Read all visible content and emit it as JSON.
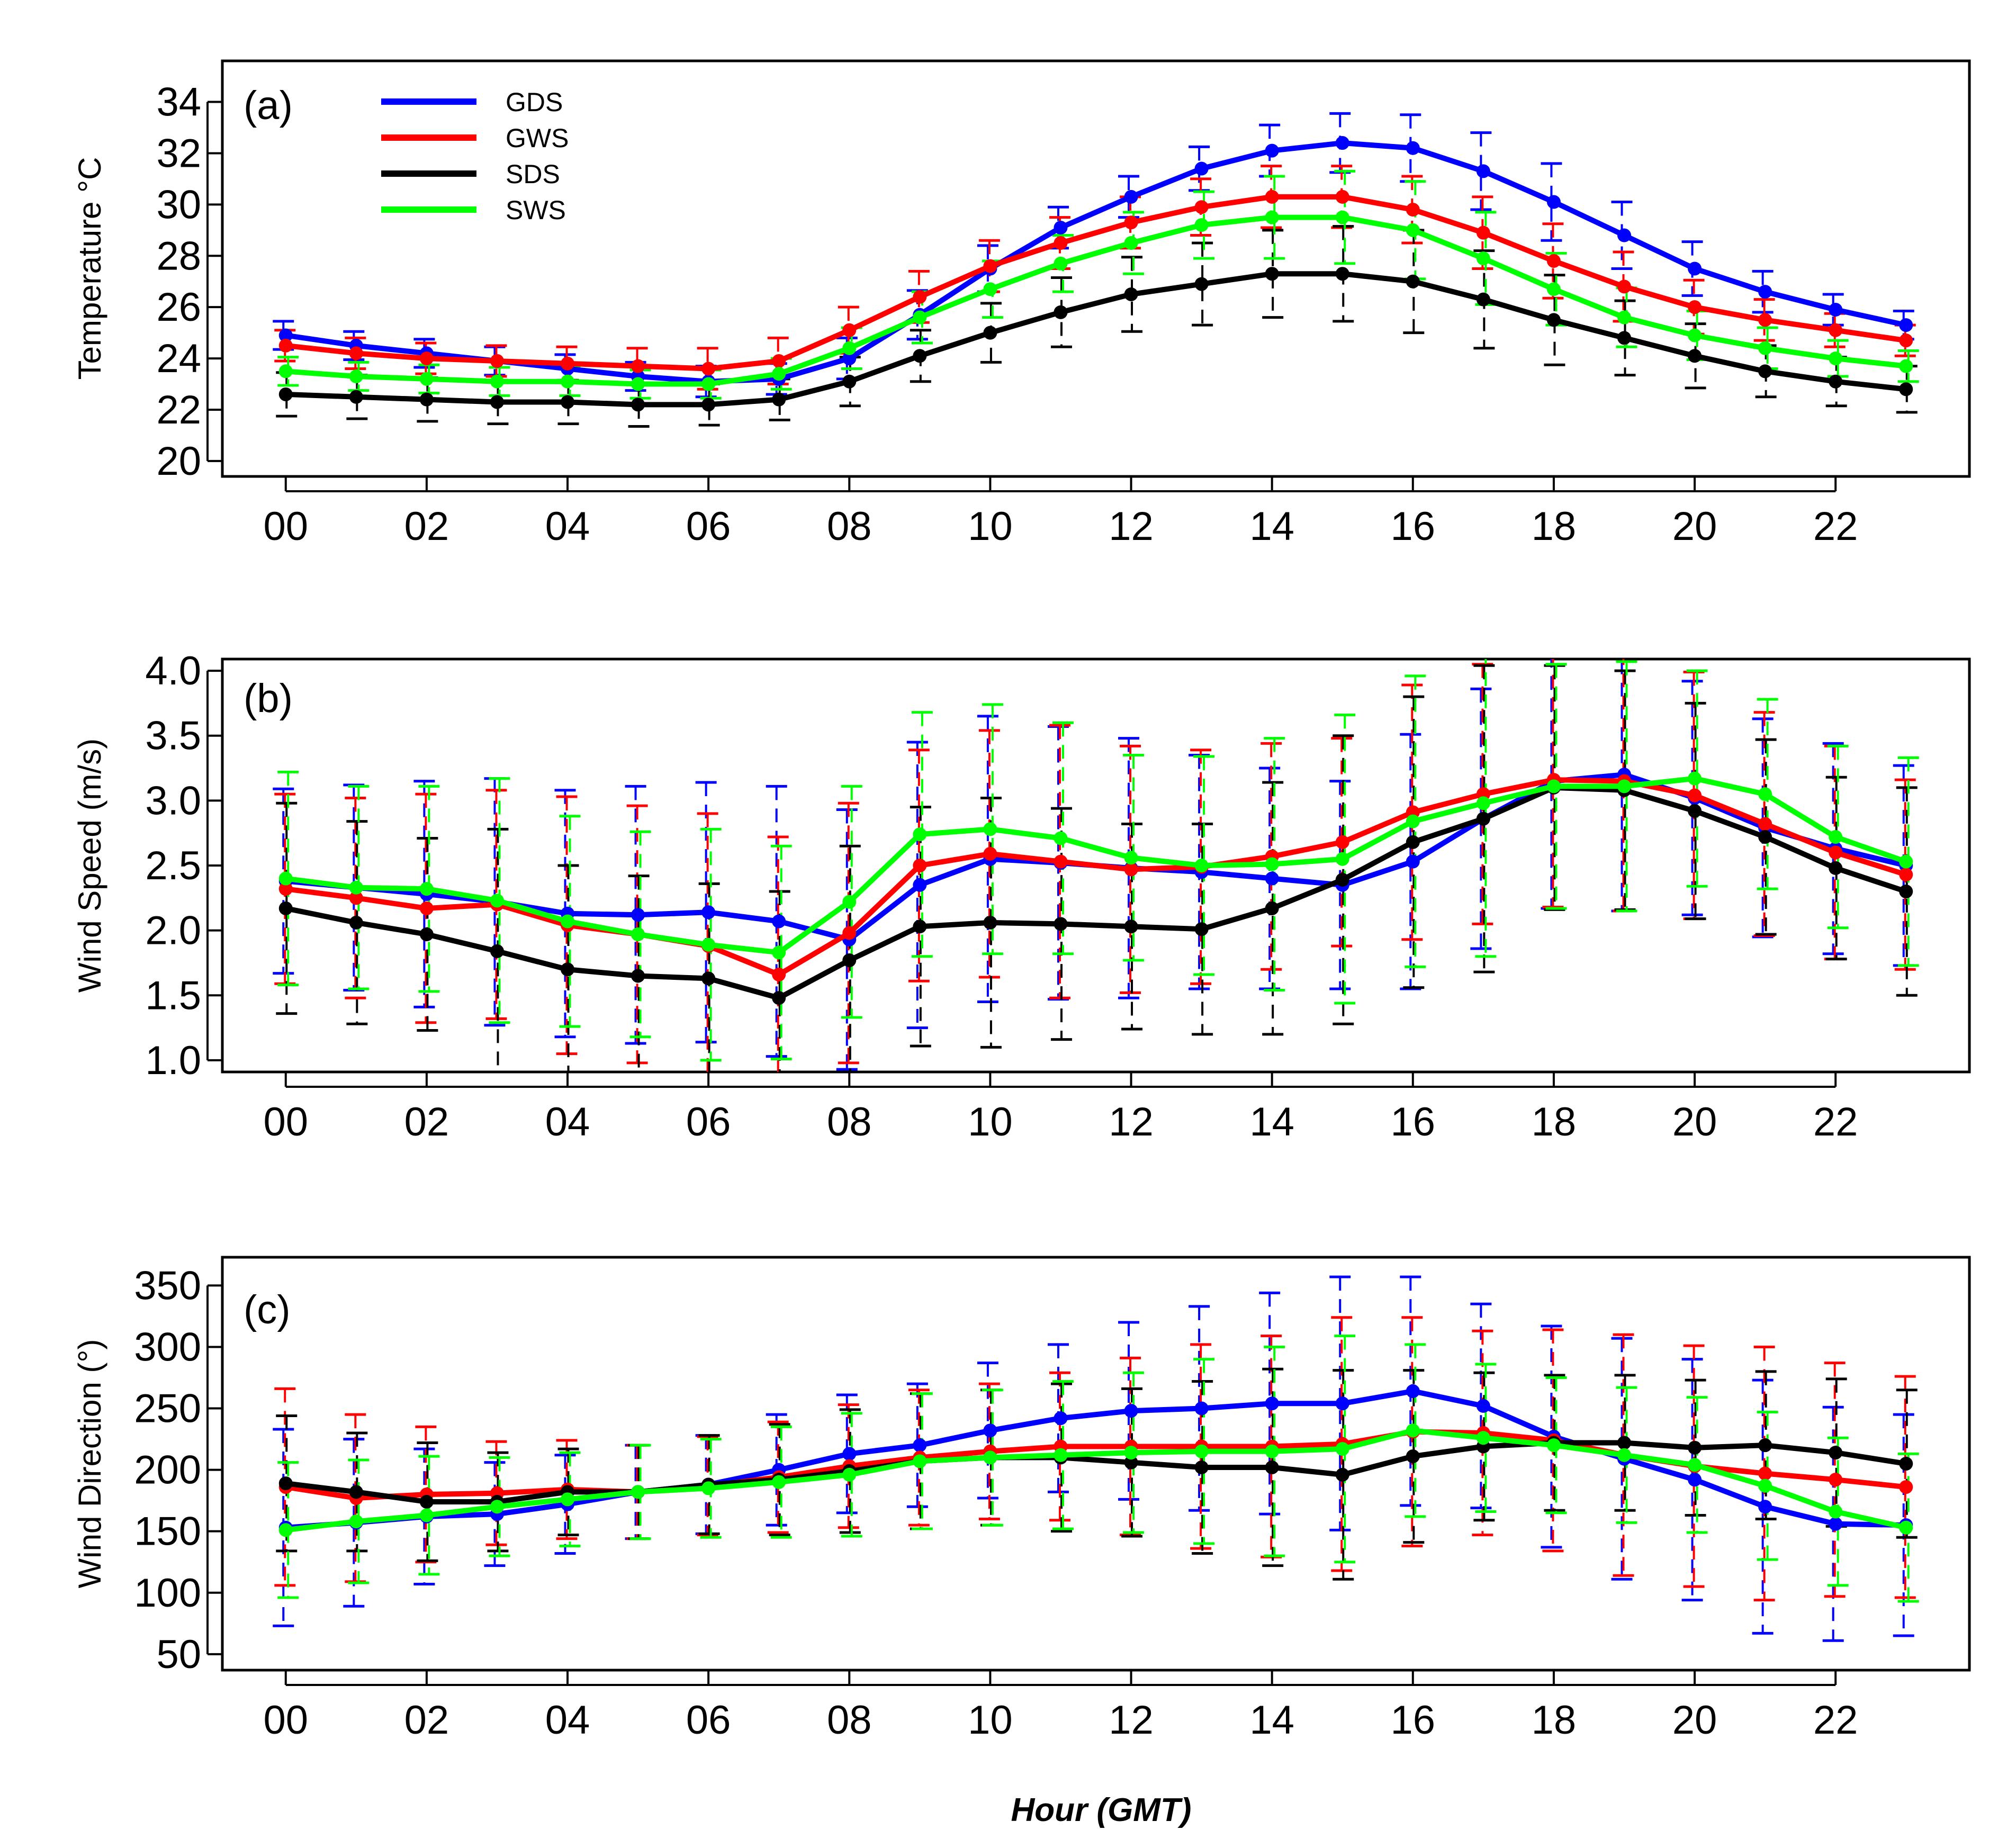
{
  "chart_data": [
    {
      "type": "line",
      "panel_tag": "(a)",
      "ylabel": "Temperature °C",
      "xlabel": "",
      "ylim": [
        19.4,
        35.6
      ],
      "xlim": [
        -0.9,
        23.9
      ],
      "yticks": [
        20,
        22,
        24,
        26,
        28,
        30,
        32,
        34
      ],
      "ytick_labels": [
        "20",
        "22",
        "24",
        "26",
        "28",
        "30",
        "32",
        "34"
      ],
      "xticks": [
        0,
        2,
        4,
        6,
        8,
        10,
        12,
        14,
        16,
        18,
        20,
        22
      ],
      "xtick_labels": [
        "00",
        "02",
        "04",
        "06",
        "08",
        "10",
        "12",
        "14",
        "16",
        "18",
        "20",
        "22"
      ],
      "x": [
        0,
        1,
        2,
        3,
        4,
        5,
        6,
        7,
        8,
        9,
        10,
        11,
        12,
        13,
        14,
        15,
        16,
        17,
        18,
        19,
        20,
        21,
        22,
        23
      ],
      "legend": {
        "position": "top-left",
        "entries": [
          "GDS",
          "GWS",
          "SDS",
          "SWS"
        ]
      },
      "series": [
        {
          "name": "GDS",
          "color": "#0000ff",
          "values": [
            24.9,
            24.5,
            24.2,
            23.9,
            23.6,
            23.3,
            23.1,
            23.2,
            24.0,
            25.7,
            27.5,
            29.1,
            30.3,
            31.4,
            32.1,
            32.4,
            32.2,
            31.3,
            30.1,
            28.8,
            27.5,
            26.6,
            25.9,
            25.3
          ],
          "error": [
            0.55,
            0.55,
            0.55,
            0.55,
            0.55,
            0.55,
            0.6,
            0.6,
            0.8,
            0.95,
            0.9,
            0.8,
            0.8,
            0.85,
            1.0,
            1.15,
            1.3,
            1.5,
            1.5,
            1.3,
            1.05,
            0.8,
            0.6,
            0.55
          ]
        },
        {
          "name": "GWS",
          "color": "#ff0000",
          "values": [
            24.5,
            24.2,
            24.0,
            23.9,
            23.8,
            23.7,
            23.6,
            23.9,
            25.1,
            26.4,
            27.6,
            28.5,
            29.3,
            29.9,
            30.3,
            30.3,
            29.8,
            28.9,
            27.8,
            26.8,
            26.0,
            25.5,
            25.1,
            24.7
          ],
          "error": [
            0.6,
            0.6,
            0.6,
            0.6,
            0.65,
            0.7,
            0.8,
            0.9,
            0.9,
            1.0,
            1.0,
            1.0,
            1.0,
            1.1,
            1.2,
            1.2,
            1.3,
            1.4,
            1.45,
            1.35,
            1.05,
            0.8,
            0.65,
            0.6
          ]
        },
        {
          "name": "SDS",
          "color": "#000000",
          "values": [
            22.6,
            22.5,
            22.4,
            22.3,
            22.3,
            22.2,
            22.2,
            22.4,
            23.1,
            24.1,
            25.0,
            25.8,
            26.5,
            26.9,
            27.3,
            27.3,
            27.0,
            26.3,
            25.5,
            24.8,
            24.1,
            23.5,
            23.1,
            22.8
          ],
          "error": [
            0.85,
            0.85,
            0.85,
            0.85,
            0.85,
            0.85,
            0.8,
            0.8,
            0.95,
            1.0,
            1.15,
            1.35,
            1.45,
            1.6,
            1.7,
            1.85,
            2.0,
            1.9,
            1.75,
            1.45,
            1.25,
            1.0,
            0.95,
            0.9
          ]
        },
        {
          "name": "SWS",
          "color": "#00ff00",
          "values": [
            23.5,
            23.3,
            23.2,
            23.1,
            23.1,
            23.0,
            23.0,
            23.4,
            24.4,
            25.6,
            26.7,
            27.7,
            28.5,
            29.2,
            29.5,
            29.5,
            29.0,
            27.9,
            26.7,
            25.6,
            24.9,
            24.4,
            24.0,
            23.7
          ],
          "error": [
            0.55,
            0.55,
            0.55,
            0.55,
            0.55,
            0.55,
            0.55,
            0.6,
            0.8,
            1.0,
            1.1,
            1.1,
            1.2,
            1.3,
            1.6,
            1.8,
            1.9,
            1.8,
            1.4,
            1.15,
            0.95,
            0.8,
            0.7,
            0.6
          ]
        }
      ]
    },
    {
      "type": "line",
      "panel_tag": "(b)",
      "ylabel": "Wind Speed (m/s)",
      "xlabel": "",
      "ylim": [
        0.91,
        4.09
      ],
      "xlim": [
        -0.9,
        23.9
      ],
      "yticks": [
        1.0,
        1.5,
        2.0,
        2.5,
        3.0,
        3.5,
        4.0
      ],
      "ytick_labels": [
        "1.0",
        "1.5",
        "2.0",
        "2.5",
        "3.0",
        "3.5",
        "4.0"
      ],
      "xticks": [
        0,
        2,
        4,
        6,
        8,
        10,
        12,
        14,
        16,
        18,
        20,
        22
      ],
      "xtick_labels": [
        "00",
        "02",
        "04",
        "06",
        "08",
        "10",
        "12",
        "14",
        "16",
        "18",
        "20",
        "22"
      ],
      "x": [
        0,
        1,
        2,
        3,
        4,
        5,
        6,
        7,
        8,
        9,
        10,
        11,
        12,
        13,
        14,
        15,
        16,
        17,
        18,
        19,
        20,
        21,
        22,
        23
      ],
      "series": [
        {
          "name": "GDS",
          "color": "#0000ff",
          "values": [
            2.38,
            2.33,
            2.28,
            2.22,
            2.13,
            2.12,
            2.14,
            2.07,
            1.93,
            2.35,
            2.55,
            2.52,
            2.48,
            2.45,
            2.4,
            2.35,
            2.53,
            2.86,
            3.15,
            3.2,
            3.02,
            2.79,
            2.63,
            2.5
          ],
          "error": [
            0.71,
            0.79,
            0.87,
            0.95,
            0.95,
            0.99,
            1.0,
            1.04,
            1.0,
            1.1,
            1.1,
            1.05,
            1.0,
            0.9,
            0.85,
            0.8,
            0.98,
            1.0,
            0.98,
            1.05,
            0.9,
            0.84,
            0.81,
            0.77
          ]
        },
        {
          "name": "GWS",
          "color": "#ff0000",
          "values": [
            2.32,
            2.25,
            2.17,
            2.2,
            2.04,
            1.97,
            1.88,
            1.66,
            1.98,
            2.5,
            2.59,
            2.53,
            2.47,
            2.49,
            2.57,
            2.68,
            2.91,
            3.05,
            3.16,
            3.15,
            3.04,
            2.82,
            2.6,
            2.43
          ],
          "error": [
            0.73,
            0.77,
            0.88,
            0.88,
            0.99,
            0.99,
            1.02,
            1.06,
            1.0,
            0.89,
            0.95,
            1.05,
            0.95,
            0.9,
            0.87,
            0.8,
            0.98,
            1.0,
            0.98,
            1.0,
            0.95,
            0.86,
            0.82,
            0.73
          ]
        },
        {
          "name": "SDS",
          "color": "#000000",
          "values": [
            2.17,
            2.06,
            1.97,
            1.84,
            1.7,
            1.65,
            1.63,
            1.48,
            1.77,
            2.03,
            2.06,
            2.05,
            2.03,
            2.01,
            2.17,
            2.39,
            2.68,
            2.86,
            3.1,
            3.08,
            2.92,
            2.72,
            2.48,
            2.3
          ],
          "error": [
            0.81,
            0.78,
            0.74,
            0.94,
            0.8,
            0.77,
            0.73,
            0.82,
            0.88,
            0.92,
            0.96,
            0.89,
            0.79,
            0.81,
            0.97,
            1.11,
            1.12,
            1.18,
            0.94,
            0.92,
            0.83,
            0.75,
            0.7,
            0.8
          ]
        },
        {
          "name": "SWS",
          "color": "#00ff00",
          "values": [
            2.4,
            2.33,
            2.32,
            2.23,
            2.07,
            1.97,
            1.89,
            1.83,
            2.22,
            2.74,
            2.78,
            2.71,
            2.56,
            2.5,
            2.51,
            2.55,
            2.84,
            2.98,
            3.11,
            3.11,
            3.17,
            3.05,
            2.72,
            2.53
          ],
          "error": [
            0.82,
            0.78,
            0.79,
            0.94,
            0.81,
            0.79,
            0.89,
            0.82,
            0.89,
            0.94,
            0.96,
            0.89,
            0.79,
            0.84,
            0.97,
            1.11,
            1.12,
            1.18,
            0.94,
            0.96,
            0.83,
            0.73,
            0.7,
            0.8
          ]
        }
      ]
    },
    {
      "type": "line",
      "panel_tag": "(c)",
      "ylabel": "Wind Direction (°)",
      "xlabel": "Hour (GMT)",
      "ylim": [
        37,
        373
      ],
      "xlim": [
        -0.9,
        23.9
      ],
      "yticks": [
        50,
        100,
        150,
        200,
        250,
        300,
        350
      ],
      "ytick_labels": [
        "50",
        "100",
        "150",
        "200",
        "250",
        "300",
        "350"
      ],
      "xticks": [
        0,
        2,
        4,
        6,
        8,
        10,
        12,
        14,
        16,
        18,
        20,
        22
      ],
      "xtick_labels": [
        "00",
        "02",
        "04",
        "06",
        "08",
        "10",
        "12",
        "14",
        "16",
        "18",
        "20",
        "22"
      ],
      "x": [
        0,
        1,
        2,
        3,
        4,
        5,
        6,
        7,
        8,
        9,
        10,
        11,
        12,
        13,
        14,
        15,
        16,
        17,
        18,
        19,
        20,
        21,
        22,
        23
      ],
      "series": [
        {
          "name": "GDS",
          "color": "#0000ff",
          "values": [
            153,
            157,
            162,
            164,
            172,
            182,
            188,
            200,
            213,
            220,
            232,
            242,
            248,
            250,
            254,
            254,
            264,
            252,
            227,
            209,
            192,
            170,
            156,
            155
          ],
          "error": [
            80,
            68,
            55,
            42,
            40,
            38,
            40,
            45,
            48,
            50,
            55,
            60,
            72,
            83,
            90,
            103,
            93,
            83,
            90,
            98,
            98,
            103,
            95,
            90
          ]
        },
        {
          "name": "GWS",
          "color": "#ff0000",
          "values": [
            186,
            177,
            180,
            181,
            184,
            182,
            187,
            194,
            203,
            210,
            215,
            219,
            219,
            219,
            219,
            221,
            231,
            230,
            224,
            212,
            203,
            197,
            192,
            186
          ],
          "error": [
            80,
            68,
            55,
            42,
            40,
            38,
            40,
            45,
            50,
            55,
            55,
            60,
            72,
            83,
            90,
            103,
            93,
            83,
            90,
            98,
            98,
            103,
            95,
            90
          ]
        },
        {
          "name": "SDS",
          "color": "#000000",
          "values": [
            189,
            182,
            174,
            174,
            182,
            182,
            188,
            192,
            199,
            207,
            210,
            210,
            206,
            202,
            202,
            196,
            211,
            219,
            222,
            222,
            218,
            220,
            214,
            205
          ],
          "error": [
            55,
            48,
            48,
            40,
            35,
            38,
            40,
            45,
            50,
            55,
            55,
            60,
            60,
            70,
            80,
            85,
            70,
            60,
            55,
            55,
            55,
            60,
            60,
            60
          ]
        },
        {
          "name": "SWS",
          "color": "#00ff00",
          "values": [
            151,
            158,
            163,
            170,
            176,
            182,
            185,
            190,
            196,
            207,
            210,
            212,
            214,
            215,
            215,
            217,
            232,
            226,
            220,
            212,
            204,
            187,
            166,
            153
          ],
          "error": [
            55,
            50,
            48,
            40,
            38,
            38,
            40,
            45,
            50,
            55,
            55,
            60,
            65,
            75,
            85,
            92,
            70,
            60,
            55,
            55,
            55,
            60,
            60,
            60
          ]
        }
      ]
    }
  ]
}
